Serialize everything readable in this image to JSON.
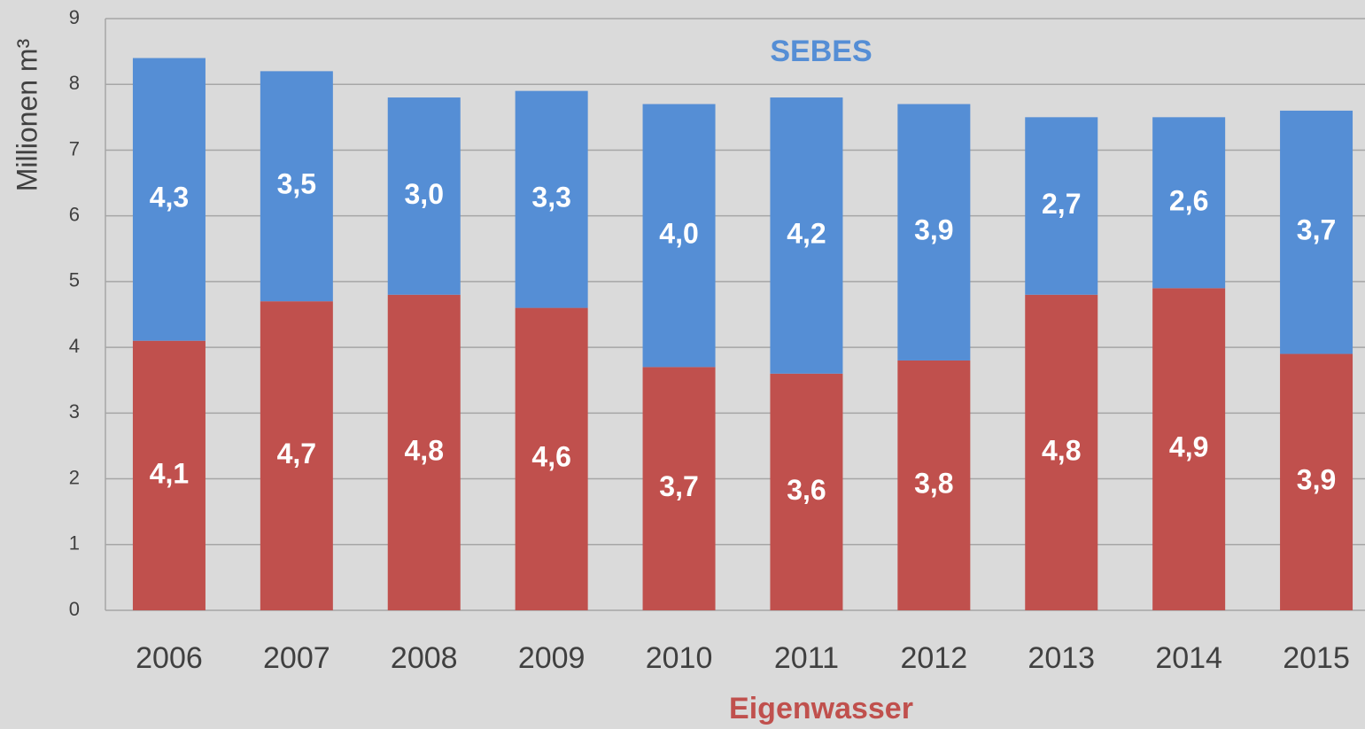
{
  "chart_data": {
    "type": "stacked_bar",
    "y_label": "Millionen m³",
    "categories": [
      "2006",
      "2007",
      "2008",
      "2009",
      "2010",
      "2011",
      "2012",
      "2013",
      "2014",
      "2015"
    ],
    "series": [
      {
        "name": "Eigenwasser",
        "color": "#c0504d",
        "values": [
          4.1,
          4.7,
          4.8,
          4.6,
          3.7,
          3.6,
          3.8,
          4.8,
          4.9,
          3.9
        ],
        "value_labels": [
          "4,1",
          "4,7",
          "4,8",
          "4,6",
          "3,7",
          "3,6",
          "3,8",
          "4,8",
          "4,9",
          "3,9"
        ]
      },
      {
        "name": "SEBES",
        "color": "#558ed5",
        "values": [
          4.3,
          3.5,
          3.0,
          3.3,
          4.0,
          4.2,
          3.9,
          2.7,
          2.6,
          3.7
        ],
        "value_labels": [
          "4,3",
          "3,5",
          "3,0",
          "3,3",
          "4,0",
          "4,2",
          "3,9",
          "2,7",
          "2,6",
          "3,7"
        ]
      }
    ],
    "ylim": [
      0,
      9
    ],
    "yticks": [
      0,
      1,
      2,
      3,
      4,
      5,
      6,
      7,
      8,
      9
    ],
    "grid": true
  }
}
